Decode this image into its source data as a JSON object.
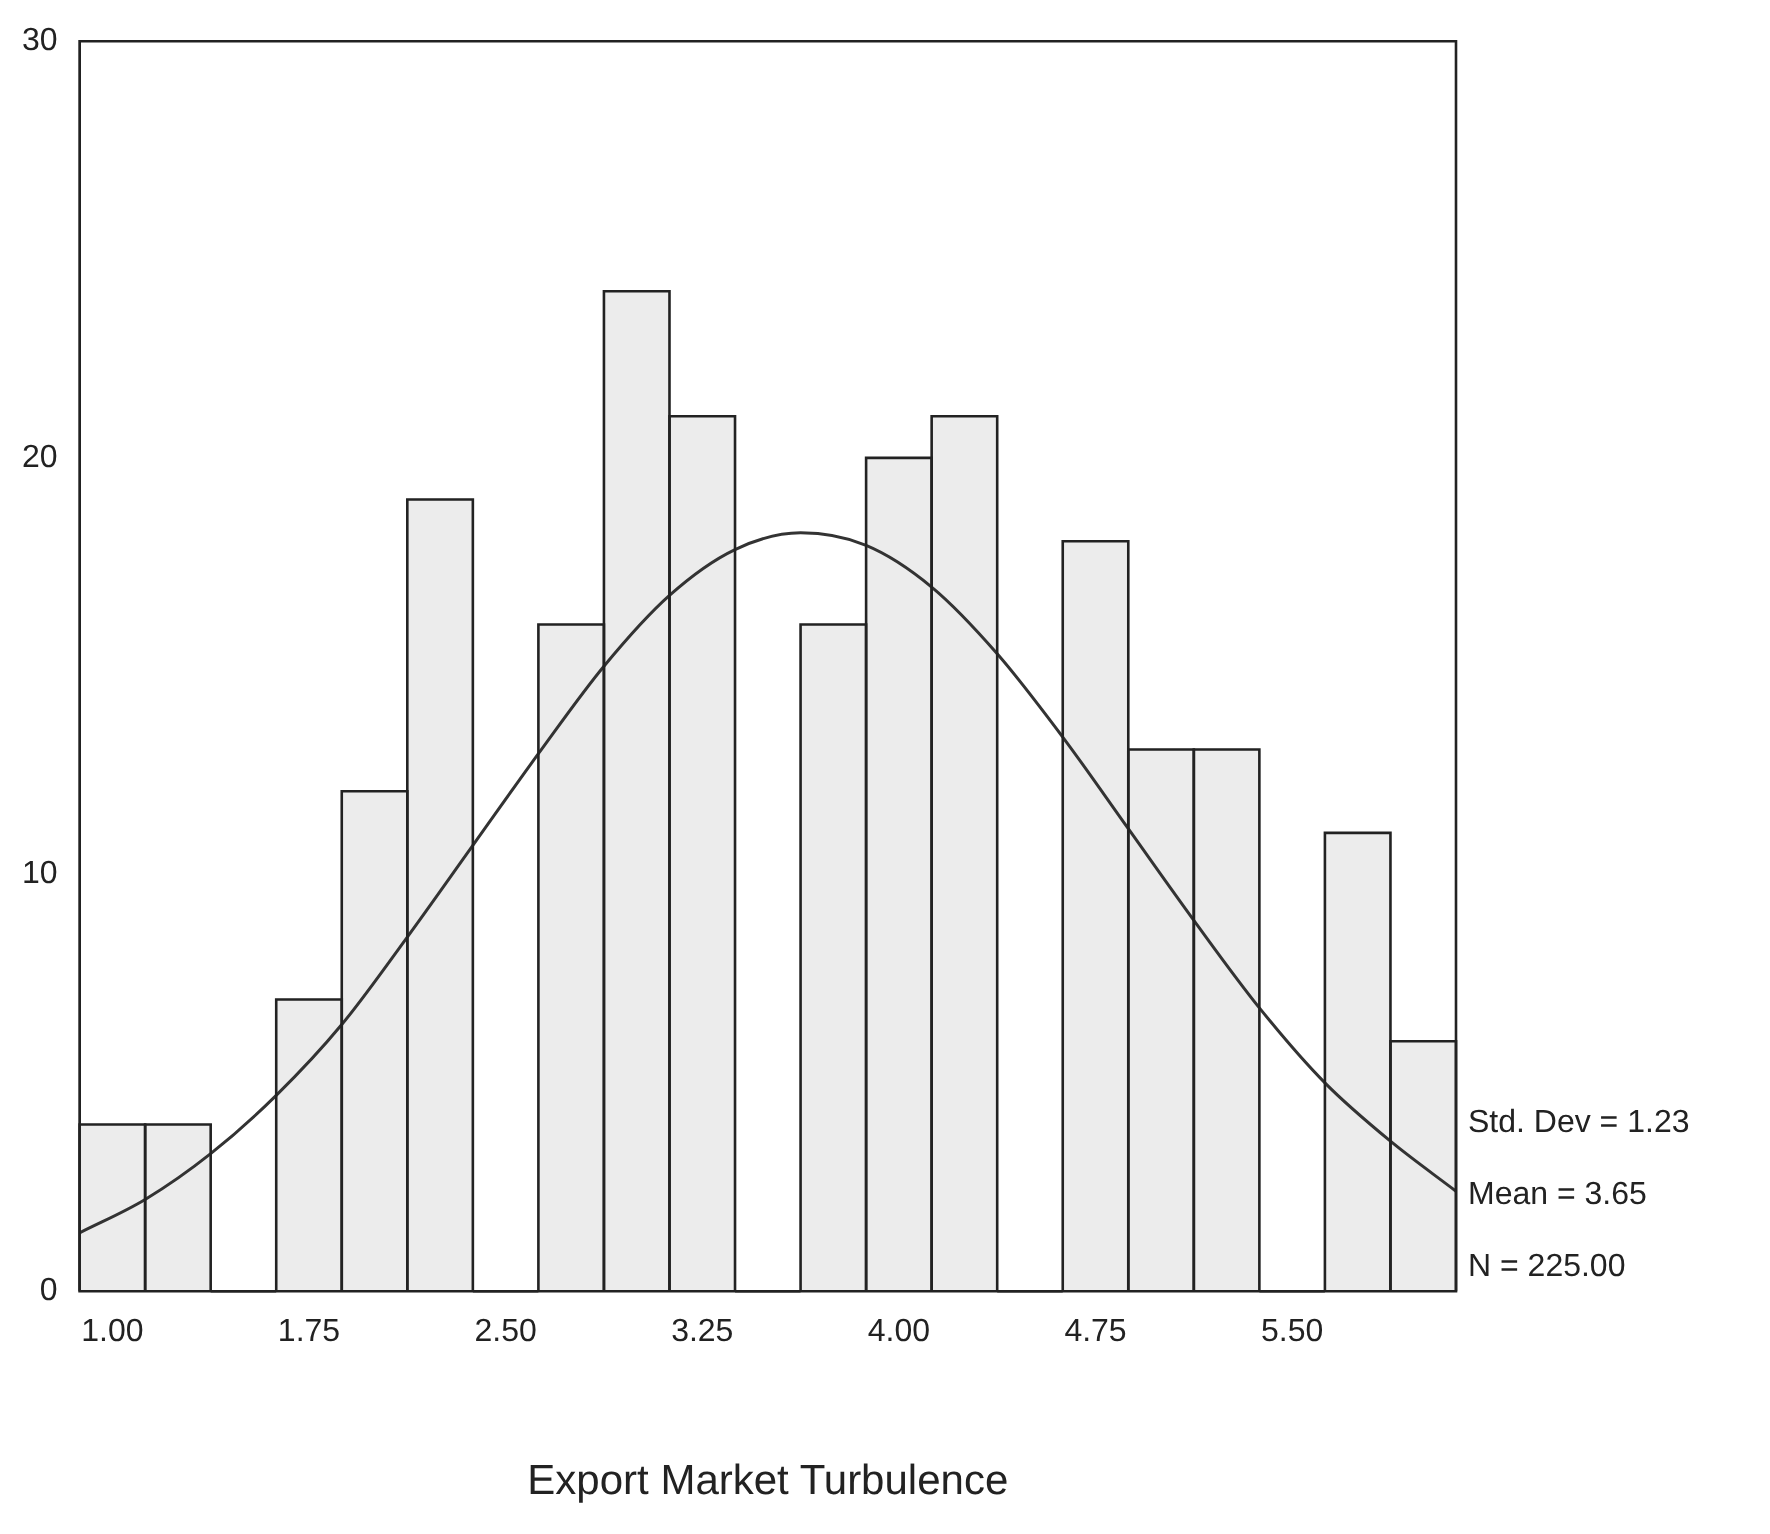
{
  "chart_data": {
    "type": "histogram",
    "xlabel": "Export Market Turbulence",
    "bins": [
      0.875,
      1.125,
      1.375,
      1.625,
      1.875,
      2.125,
      2.375,
      2.625,
      2.875,
      3.125,
      3.375,
      3.625,
      3.875,
      4.125,
      4.375,
      4.625,
      4.875,
      5.125,
      5.375,
      5.625,
      5.875,
      6.125
    ],
    "values": [
      4,
      4,
      0,
      7,
      12,
      19,
      0,
      16,
      24,
      21,
      0,
      16,
      20,
      21,
      0,
      18,
      13,
      13,
      0,
      11,
      6
    ],
    "color": "#ececec",
    "xlim": [
      0.875,
      6.125
    ],
    "xticks": [
      {
        "value": 1,
        "label": "1.00"
      },
      {
        "value": 1.75,
        "label": "1.75"
      },
      {
        "value": 2.5,
        "label": "2.50"
      },
      {
        "value": 3.25,
        "label": "3.25"
      },
      {
        "value": 4,
        "label": "4.00"
      },
      {
        "value": 4.75,
        "label": "4.75"
      },
      {
        "value": 5.5,
        "label": "5.50"
      }
    ],
    "ylim": [
      0,
      30
    ],
    "yticks": [
      0,
      10,
      20,
      30
    ],
    "series": [
      {
        "type": "line",
        "color": "#333333",
        "x": [
          0.875,
          1.125,
          1.375,
          1.625,
          1.875,
          2.125,
          2.375,
          2.625,
          2.875,
          3.125,
          3.375,
          3.625,
          3.875,
          4.125,
          4.375,
          4.625,
          4.875,
          5.125,
          5.375,
          5.625,
          5.875,
          6.125
        ],
        "values": [
          1.4,
          2.2,
          3.3,
          4.7,
          6.4,
          8.5,
          10.7,
          12.9,
          15.0,
          16.7,
          17.8,
          18.2,
          17.9,
          16.9,
          15.3,
          13.3,
          11.1,
          8.9,
          6.8,
          5.0,
          3.6,
          2.4
        ]
      }
    ],
    "annotations": [
      "Std. Dev = 1.23",
      "Mean = 3.65",
      "N = 225.00"
    ]
  }
}
